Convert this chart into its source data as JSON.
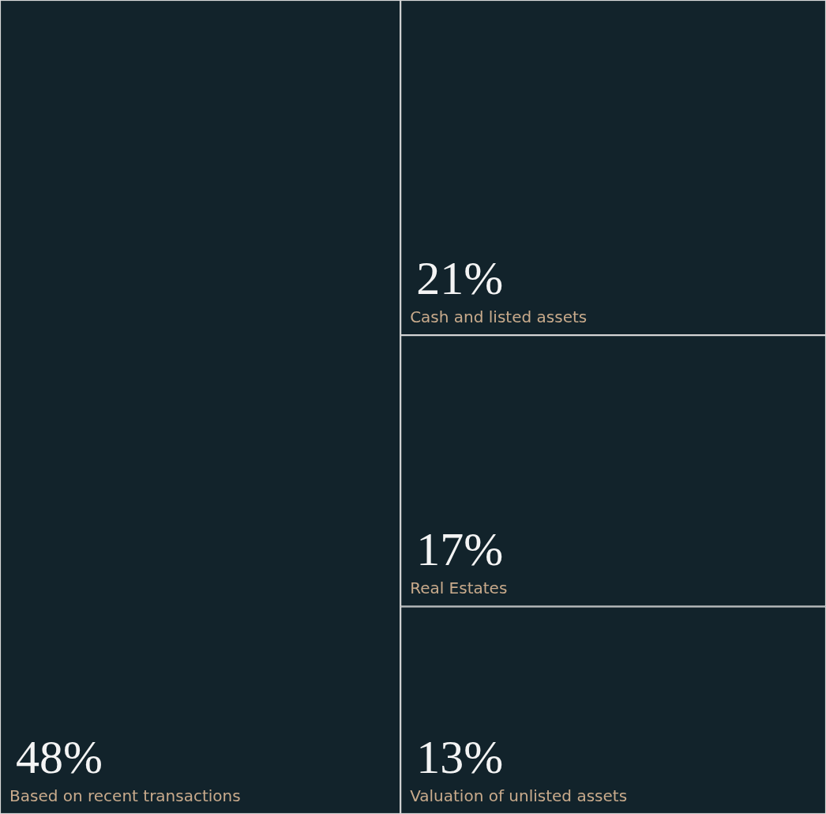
{
  "chart_data": {
    "type": "other",
    "categories": [
      "Based on recent transactions",
      "Cash and listed assets",
      "Real Estates",
      "Valuation of unlisted assets"
    ],
    "values": [
      48,
      21,
      17,
      13
    ],
    "value_labels": [
      "48%",
      "21%",
      "17%",
      "13%"
    ],
    "colors": [
      "#12232b",
      "#12232b",
      "#12232b",
      "#12232b"
    ]
  }
}
